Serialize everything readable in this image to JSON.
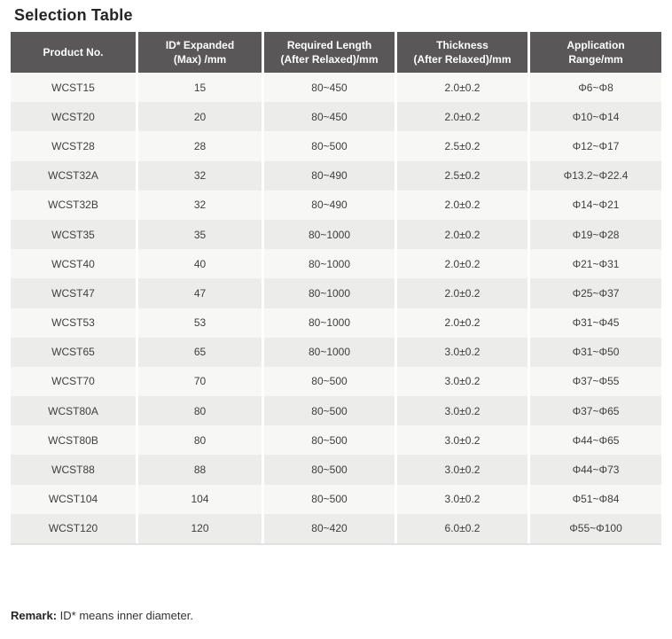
{
  "page_title": "Selection Table",
  "colors": {
    "header_bg": "#595757",
    "header_text": "#ffffff",
    "row_light": "#f7f7f6",
    "row_dark": "#ececeb",
    "body_text": "#3e3e3e",
    "title_text": "#262424"
  },
  "table": {
    "headers": [
      {
        "lines": [
          "Product No."
        ]
      },
      {
        "lines": [
          "ID* Expanded",
          "(Max) /mm"
        ]
      },
      {
        "lines": [
          "Required Length",
          "(After Relaxed)/mm"
        ]
      },
      {
        "lines": [
          "Thickness",
          "(After Relaxed)/mm"
        ]
      },
      {
        "lines": [
          "Application",
          "Range/mm"
        ]
      }
    ],
    "rows": [
      [
        "WCST15",
        "15",
        "80~450",
        "2.0±0.2",
        "Φ6~Φ8"
      ],
      [
        "WCST20",
        "20",
        "80~450",
        "2.0±0.2",
        "Φ10~Φ14"
      ],
      [
        "WCST28",
        "28",
        "80~500",
        "2.5±0.2",
        "Φ12~Φ17"
      ],
      [
        "WCST32A",
        "32",
        "80~490",
        "2.5±0.2",
        "Φ13.2~Φ22.4"
      ],
      [
        "WCST32B",
        "32",
        "80~490",
        "2.0±0.2",
        "Φ14~Φ21"
      ],
      [
        "WCST35",
        "35",
        "80~1000",
        "2.0±0.2",
        "Φ19~Φ28"
      ],
      [
        "WCST40",
        "40",
        "80~1000",
        "2.0±0.2",
        "Φ21~Φ31"
      ],
      [
        "WCST47",
        "47",
        "80~1000",
        "2.0±0.2",
        "Φ25~Φ37"
      ],
      [
        "WCST53",
        "53",
        "80~1000",
        "2.0±0.2",
        "Φ31~Φ45"
      ],
      [
        "WCST65",
        "65",
        "80~1000",
        "3.0±0.2",
        "Φ31~Φ50"
      ],
      [
        "WCST70",
        "70",
        "80~500",
        "3.0±0.2",
        "Φ37~Φ55"
      ],
      [
        "WCST80A",
        "80",
        "80~500",
        "3.0±0.2",
        "Φ37~Φ65"
      ],
      [
        "WCST80B",
        "80",
        "80~500",
        "3.0±0.2",
        "Φ44~Φ65"
      ],
      [
        "WCST88",
        "88",
        "80~500",
        "3.0±0.2",
        "Φ44~Φ73"
      ],
      [
        "WCST104",
        "104",
        "80~500",
        "3.0±0.2",
        "Φ51~Φ84"
      ],
      [
        "WCST120",
        "120",
        "80~420",
        "6.0±0.2",
        "Φ55~Φ100"
      ]
    ]
  },
  "remark": {
    "label": "Remark:",
    "text": " ID* means inner diameter."
  }
}
